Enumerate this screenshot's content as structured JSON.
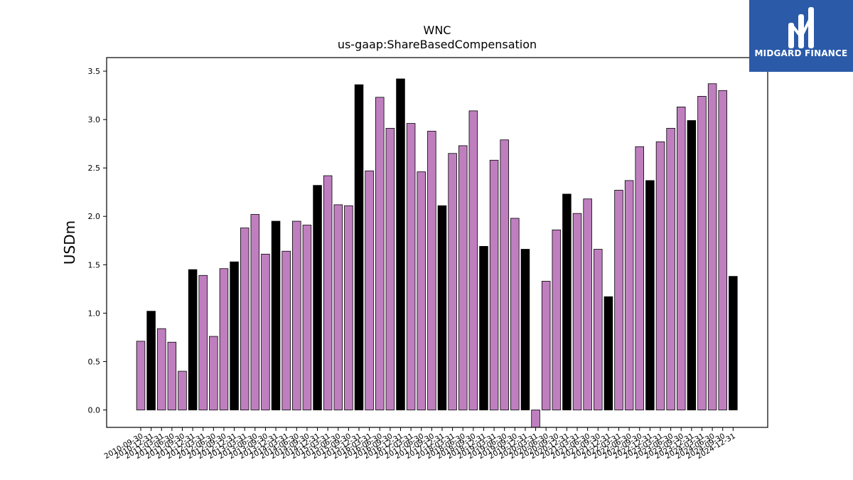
{
  "brand": {
    "name": "MIDGARD FINANCE",
    "logo_icon": "midgard-m-icon",
    "color": "#2b5aa8"
  },
  "chart_data": {
    "type": "bar",
    "title": "WNC",
    "subtitle": "us-gaap:ShareBasedCompensation",
    "xlabel": "",
    "ylabel": "USDm",
    "ylim": [
      -0.18,
      3.64
    ],
    "yticks": [
      0.0,
      0.5,
      1.0,
      1.5,
      2.0,
      2.5,
      3.0,
      3.5
    ],
    "grid": false,
    "colors": {
      "quarter": "#bf7fbf",
      "annual": "#000000",
      "edge": "#000000"
    },
    "categories": [
      "2010-09-30",
      "2010-12-31",
      "2011-03-31",
      "2011-06-30",
      "2011-09-30",
      "2011-12-31",
      "2012-03-31",
      "2012-06-30",
      "2012-09-30",
      "2012-12-31",
      "2013-03-31",
      "2013-06-30",
      "2013-09-30",
      "2013-12-31",
      "2014-03-31",
      "2014-06-30",
      "2014-09-30",
      "2014-12-31",
      "2015-03-31",
      "2015-06-30",
      "2015-09-30",
      "2015-12-31",
      "2016-03-31",
      "2016-06-30",
      "2016-09-30",
      "2016-12-31",
      "2017-03-31",
      "2017-06-30",
      "2017-09-30",
      "2017-12-31",
      "2018-03-31",
      "2018-06-30",
      "2018-09-30",
      "2018-12-31",
      "2019-03-31",
      "2019-06-30",
      "2019-09-30",
      "2019-12-31",
      "2020-03-31",
      "2020-06-30",
      "2020-09-30",
      "2020-12-31",
      "2021-03-31",
      "2021-06-30",
      "2021-09-30",
      "2021-12-31",
      "2022-03-31",
      "2022-06-30",
      "2022-09-30",
      "2022-12-31",
      "2023-03-31",
      "2023-06-30",
      "2023-09-30",
      "2023-12-31",
      "2024-03-31",
      "2024-06-30",
      "2024-09-30",
      "2024-12-31"
    ],
    "values": [
      0.71,
      1.02,
      0.84,
      0.7,
      0.4,
      1.45,
      1.39,
      0.76,
      1.46,
      1.53,
      1.88,
      2.02,
      1.61,
      1.95,
      1.64,
      1.95,
      1.91,
      2.32,
      2.42,
      2.12,
      2.11,
      3.36,
      2.47,
      3.23,
      2.91,
      3.42,
      2.96,
      2.46,
      2.88,
      2.11,
      2.65,
      2.73,
      3.09,
      1.69,
      2.58,
      2.79,
      1.98,
      1.66,
      -0.18,
      1.33,
      1.86,
      2.23,
      2.03,
      2.18,
      1.66,
      1.17,
      2.27,
      2.37,
      2.72,
      2.37,
      2.77,
      2.91,
      3.13,
      2.99,
      3.24,
      3.37,
      3.3,
      1.38
    ]
  }
}
